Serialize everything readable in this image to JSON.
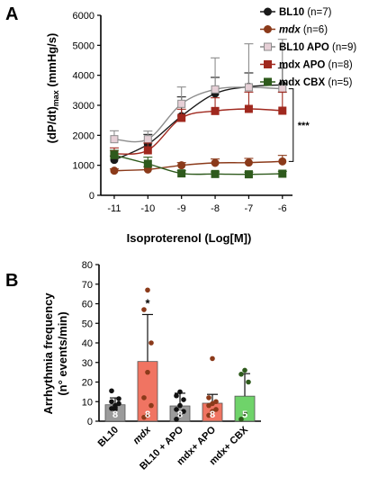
{
  "chart_data": [
    {
      "type": "line",
      "panel_label": "A",
      "xlabel": "Isoproterenol (Log[M])",
      "ylabel": "(dP/dt)max (mmHg/s)",
      "ylabel_main": "(dP/dt)",
      "ylabel_sub": "max",
      "ylabel_unit": " (mmHg/s)",
      "x": [
        -11,
        -10,
        -9,
        -8,
        -7,
        -6
      ],
      "x_ticks": [
        "-11",
        "-10",
        "-9",
        "-8",
        "-7",
        "-6"
      ],
      "ylim": [
        0,
        6000
      ],
      "y_ticks": [
        "0",
        "1000",
        "2000",
        "3000",
        "4000",
        "5000",
        "6000"
      ],
      "significance": "***",
      "legend_position": "top-right",
      "series": [
        {
          "name_bold": "BL10",
          "name_italic": "",
          "name_rest": " (n=7)",
          "marker": "circle",
          "color": "#1a1a1a",
          "fill": "#1a1a1a",
          "values": [
            1180,
            1700,
            2640,
            3390,
            3620,
            3680
          ],
          "errors": [
            130,
            330,
            640,
            540,
            460,
            560
          ]
        },
        {
          "name_bold": "",
          "name_italic": "mdx",
          "name_rest": " (n=6)",
          "marker": "circle",
          "color": "#8b3a1a",
          "fill": "#8b3a1a",
          "values": [
            820,
            860,
            1000,
            1080,
            1090,
            1130
          ],
          "errors": [
            60,
            90,
            90,
            130,
            140,
            200
          ]
        },
        {
          "name_bold": "BL10 APO",
          "name_italic": "",
          "name_rest": " (n=9)",
          "marker": "square",
          "color": "#8c8c8c",
          "fill": "#e6cfd6",
          "values": [
            1870,
            1870,
            3050,
            3530,
            3600,
            3550
          ],
          "errors": [
            280,
            270,
            560,
            1050,
            1450,
            1650
          ]
        },
        {
          "name_bold": "mdx APO",
          "name_italic": "",
          "name_rest": " (n=8)",
          "marker": "square",
          "color": "#a0281e",
          "fill": "#a0281e",
          "values": [
            1380,
            1500,
            2580,
            2810,
            2880,
            2820
          ],
          "errors": [
            200,
            240,
            290,
            440,
            560,
            620
          ]
        },
        {
          "name_bold": "mdx CBX",
          "name_italic": "",
          "name_rest": " (n=5)",
          "marker": "square",
          "color": "#2e5a1c",
          "fill": "#2e5a1c",
          "values": [
            1340,
            1050,
            730,
            710,
            700,
            720
          ],
          "errors": [
            160,
            220,
            90,
            70,
            70,
            80
          ]
        }
      ]
    },
    {
      "type": "bar",
      "panel_label": "B",
      "ylabel_line1": "Arrhythmia  frequency",
      "ylabel_line2": "(n° events/min)",
      "ylim": [
        0,
        80
      ],
      "y_ticks": [
        "0",
        "10",
        "20",
        "30",
        "40",
        "50",
        "60",
        "70",
        "80"
      ],
      "categories": [
        {
          "label": "BL10",
          "italic": false
        },
        {
          "label": "mdx",
          "italic": true
        },
        {
          "label": "BL10 + APO",
          "italic": false
        },
        {
          "label": "mdx+ APO",
          "italic": false
        },
        {
          "label": "mdx+ CBX",
          "italic": false
        }
      ],
      "values": [
        8.4,
        30.5,
        7.8,
        9.2,
        12.8
      ],
      "errors": [
        3.5,
        24.0,
        6.5,
        4.5,
        11.5
      ],
      "n_labels": [
        "8",
        "8",
        "8",
        "8",
        "5"
      ],
      "bar_colors": [
        "#9b9b9b",
        "#f07462",
        "#9b9b9b",
        "#f07462",
        "#6fd36a"
      ],
      "point_colors": [
        "#111111",
        "#8b3a1a",
        "#111111",
        "#8b3a1a",
        "#2e5a1c"
      ],
      "points": [
        [
          6.5,
          8,
          9,
          10,
          7,
          11.5,
          15.5,
          6
        ],
        [
          2,
          3,
          8,
          12,
          25,
          40,
          57,
          67
        ],
        [
          1,
          3,
          5,
          6,
          8,
          11,
          13,
          15
        ],
        [
          3,
          5,
          6,
          8,
          9,
          10,
          12,
          32
        ],
        [
          1,
          4,
          20,
          24,
          26
        ]
      ],
      "significance": [
        "",
        "*",
        "",
        "",
        ""
      ]
    }
  ]
}
